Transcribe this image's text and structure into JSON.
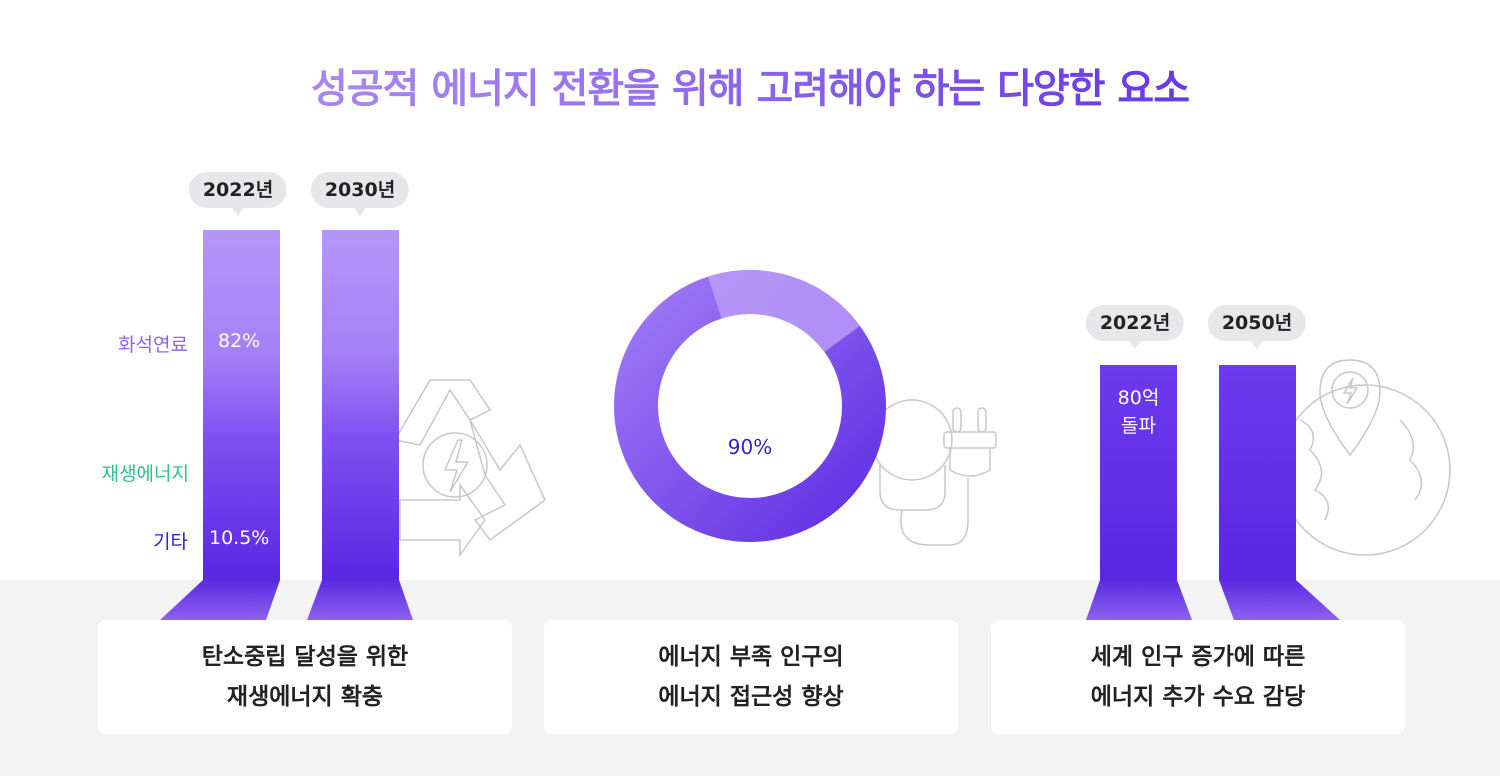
{
  "title": "성공적 에너지 전환을 위해 고려해야 하는 다양한 요소",
  "chart_data": [
    {
      "type": "bar",
      "categories": [
        "2022년",
        "2030년"
      ],
      "stack_labels": [
        "화석연료",
        "재생에너지",
        "기타"
      ],
      "data_labels": {
        "fossil": "82%",
        "other": "10.5%"
      },
      "values": {
        "화석연료": 82,
        "기타": 10.5
      }
    },
    {
      "type": "pie",
      "value": 90,
      "center_label": "90%"
    },
    {
      "type": "bar",
      "categories": [
        "2022년",
        "2050년"
      ],
      "data_label": "80억\n돌파"
    }
  ],
  "colors": {
    "fossil": "#8c62ef",
    "renewable": "#2fbf8f",
    "other": "#3c1bd0",
    "accent": "#5a27e2"
  },
  "icons": [
    "recycle-energy-icon",
    "lightbulb-plug-icon",
    "globe-location-icon"
  ],
  "cards": [
    {
      "text": "탄소중립 달성을 위한\n재생에너지 확충"
    },
    {
      "text": "에너지 부족 인구의\n에너지 접근성 향상"
    },
    {
      "text": "세계 인구 증가에 따른\n에너지 추가 수요 감당"
    }
  ]
}
